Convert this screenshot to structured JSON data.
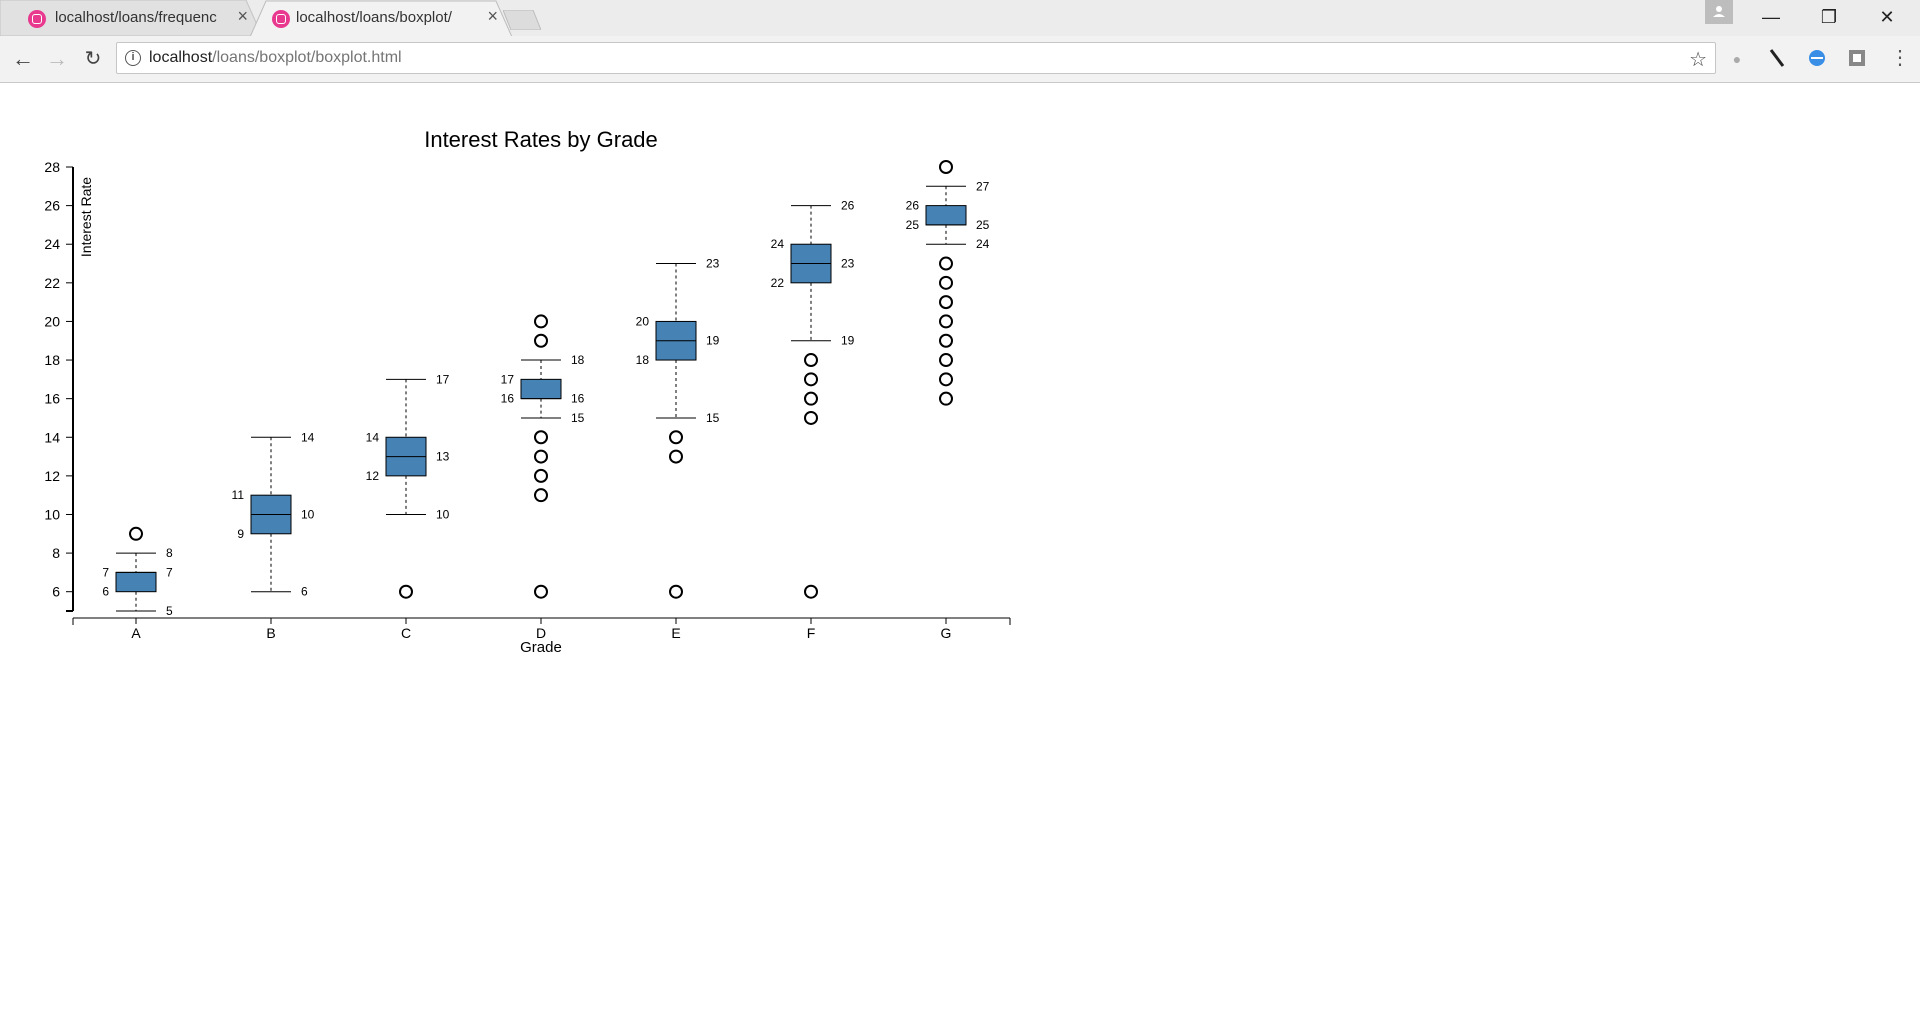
{
  "browser": {
    "tabs": [
      {
        "title": "localhost/loans/frequenc",
        "active": false
      },
      {
        "title": "localhost/loans/boxplot/",
        "active": true
      }
    ],
    "url_host": "localhost",
    "url_path": "/loans/boxplot/boxplot.html",
    "close_glyph": "×",
    "minimize_glyph": "—",
    "restore_glyph": "❐",
    "window_close_glyph": "✕"
  },
  "chart_data": {
    "type": "boxplot",
    "title": "Interest Rates by Grade",
    "xlabel": "Grade",
    "ylabel": "Interest Rate",
    "ylim": [
      5,
      28
    ],
    "yticks": [
      6,
      8,
      10,
      12,
      14,
      16,
      18,
      20,
      22,
      24,
      26,
      28
    ],
    "box_color": "#4682b4",
    "categories": [
      "A",
      "B",
      "C",
      "D",
      "E",
      "F",
      "G"
    ],
    "boxes": [
      {
        "grade": "A",
        "whisker_low": 5,
        "q1": 6,
        "median": 7,
        "q3": 7,
        "whisker_high": 8,
        "outliers": [
          9
        ]
      },
      {
        "grade": "B",
        "whisker_low": 6,
        "q1": 9,
        "median": 10,
        "q3": 11,
        "whisker_high": 14,
        "outliers": []
      },
      {
        "grade": "C",
        "whisker_low": 10,
        "q1": 12,
        "median": 13,
        "q3": 14,
        "whisker_high": 17,
        "outliers": [
          6
        ]
      },
      {
        "grade": "D",
        "whisker_low": 15,
        "q1": 16,
        "median": 16,
        "q3": 17,
        "whisker_high": 18,
        "outliers": [
          6,
          11,
          12,
          13,
          14,
          19,
          20
        ]
      },
      {
        "grade": "E",
        "whisker_low": 15,
        "q1": 18,
        "median": 19,
        "q3": 20,
        "whisker_high": 23,
        "outliers": [
          6,
          13,
          14
        ]
      },
      {
        "grade": "F",
        "whisker_low": 19,
        "q1": 22,
        "median": 23,
        "q3": 24,
        "whisker_high": 26,
        "outliers": [
          6,
          15,
          16,
          17,
          18
        ]
      },
      {
        "grade": "G",
        "whisker_low": 24,
        "q1": 25,
        "median": 25,
        "q3": 26,
        "whisker_high": 27,
        "outliers": [
          16,
          17,
          18,
          19,
          20,
          21,
          22,
          23,
          28
        ]
      }
    ]
  }
}
